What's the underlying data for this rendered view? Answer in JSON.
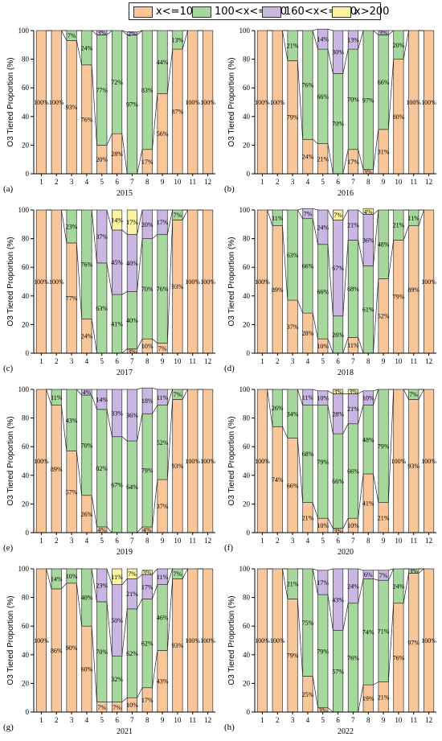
{
  "colors": {
    "x<=100": "#F9C69A",
    "100<x<=160": "#A6D79C",
    "160<x<=200": "#C9B6E3",
    "x>200": "#FCF3A2",
    "axis": "#000000"
  },
  "legend": {
    "entries": [
      "x<=100",
      "100<x<=160",
      "160<x<=200",
      "x>200"
    ]
  },
  "chart_data": [
    {
      "type": "bar",
      "stacked": true,
      "panel_label": "(a)",
      "title": "2015",
      "ylabel": "O3 Tiered Proportion (%)",
      "ylim": [
        0,
        100
      ],
      "yticks": [
        0,
        20,
        40,
        60,
        80,
        100
      ],
      "categories": [
        "1",
        "2",
        "3",
        "4",
        "5",
        "6",
        "7",
        "8",
        "9",
        "10",
        "11",
        "12"
      ],
      "series": [
        {
          "name": "x<=100",
          "values": [
            100,
            100,
            93,
            76,
            20,
            28,
            0,
            17,
            56,
            87,
            100,
            100
          ]
        },
        {
          "name": "100<x<=160",
          "values": [
            0,
            0,
            7,
            24,
            77,
            72,
            97,
            83,
            44,
            13,
            0,
            0
          ]
        },
        {
          "name": "160<x<=200",
          "values": [
            0,
            0,
            0,
            0,
            3,
            0,
            2,
            0,
            0,
            0,
            0,
            0
          ]
        },
        {
          "name": "x>200",
          "values": [
            0,
            0,
            0,
            0,
            0,
            0,
            0,
            0,
            0,
            0,
            0,
            0
          ]
        }
      ],
      "data_labels": [
        [
          "100%",
          "100%",
          "93%",
          "76%",
          "20%",
          "28%",
          "",
          "17%",
          "56%",
          "87%",
          "100%",
          "100%"
        ],
        [
          "",
          "",
          "7%",
          "24%",
          "77%",
          "72%",
          "97%",
          "83%",
          "44%",
          "13%",
          "",
          ""
        ],
        [
          "",
          "",
          "",
          "",
          "3%",
          "",
          "2%",
          "",
          "",
          "",
          "",
          ""
        ],
        [
          "",
          "",
          "",
          "",
          "",
          "",
          "",
          "",
          "",
          "",
          "",
          ""
        ]
      ]
    },
    {
      "type": "bar",
      "stacked": true,
      "panel_label": "(b)",
      "title": "2016",
      "ylabel": "O3 Tiered Proportion (%)",
      "ylim": [
        0,
        100
      ],
      "yticks": [
        0,
        20,
        40,
        60,
        80,
        100
      ],
      "categories": [
        "1",
        "2",
        "3",
        "4",
        "5",
        "6",
        "7",
        "8",
        "9",
        "10",
        "11",
        "12"
      ],
      "series": [
        {
          "name": "x<=100",
          "values": [
            100,
            100,
            79,
            24,
            21,
            0,
            17,
            3,
            31,
            80,
            100,
            100
          ]
        },
        {
          "name": "100<x<=160",
          "values": [
            0,
            0,
            21,
            76,
            66,
            70,
            70,
            97,
            66,
            20,
            0,
            0
          ]
        },
        {
          "name": "160<x<=200",
          "values": [
            0,
            0,
            0,
            0,
            14,
            30,
            13,
            0,
            3,
            0,
            0,
            0
          ]
        },
        {
          "name": "x>200",
          "values": [
            0,
            0,
            0,
            0,
            0,
            0,
            0,
            0,
            0,
            0,
            0,
            0
          ]
        }
      ],
      "data_labels": [
        [
          "100%",
          "100%",
          "79%",
          "24%",
          "21%",
          "",
          "17%",
          "3%",
          "31%",
          "80%",
          "100%",
          "100%"
        ],
        [
          "",
          "",
          "21%",
          "76%",
          "66%",
          "70%",
          "70%",
          "97%",
          "66%",
          "20%",
          "",
          ""
        ],
        [
          "",
          "",
          "",
          "",
          "14%",
          "30%",
          "13%",
          "",
          "3%",
          "",
          "",
          ""
        ],
        [
          "",
          "",
          "",
          "",
          "",
          "",
          "",
          "",
          "",
          "",
          "",
          ""
        ]
      ]
    },
    {
      "type": "bar",
      "stacked": true,
      "panel_label": "(c)",
      "title": "2017",
      "ylabel": "O3 Tiered Proportion (%)",
      "ylim": [
        0,
        100
      ],
      "yticks": [
        0,
        20,
        40,
        60,
        80,
        100
      ],
      "categories": [
        "1",
        "2",
        "3",
        "4",
        "5",
        "6",
        "7",
        "8",
        "9",
        "10",
        "11",
        "12"
      ],
      "series": [
        {
          "name": "x<=100",
          "values": [
            100,
            100,
            77,
            24,
            0,
            0,
            3,
            10,
            7,
            93,
            100,
            100
          ]
        },
        {
          "name": "100<x<=160",
          "values": [
            0,
            0,
            23,
            76,
            63,
            41,
            40,
            70,
            76,
            7,
            0,
            0
          ]
        },
        {
          "name": "160<x<=200",
          "values": [
            0,
            0,
            0,
            0,
            37,
            45,
            40,
            20,
            17,
            0,
            0,
            0
          ]
        },
        {
          "name": "x>200",
          "values": [
            0,
            0,
            0,
            0,
            0,
            14,
            17,
            0,
            0,
            0,
            0,
            0
          ]
        }
      ],
      "data_labels": [
        [
          "100%",
          "100%",
          "77%",
          "24%",
          "",
          "",
          "3%",
          "10%",
          "7%",
          "93%",
          "100%",
          "100%"
        ],
        [
          "",
          "",
          "23%",
          "76%",
          "63%",
          "41%",
          "40%",
          "70%",
          "76%",
          "7%",
          "",
          ""
        ],
        [
          "",
          "",
          "",
          "",
          "37%",
          "45%",
          "40%",
          "20%",
          "17%",
          "",
          "",
          ""
        ],
        [
          "",
          "",
          "",
          "",
          "",
          "14%",
          "17%",
          "",
          "",
          "",
          "",
          ""
        ]
      ]
    },
    {
      "type": "bar",
      "stacked": true,
      "panel_label": "(d)",
      "title": "2018",
      "ylabel": "O3 Tiered Proportion (%)",
      "ylim": [
        0,
        100
      ],
      "yticks": [
        0,
        20,
        40,
        60,
        80,
        100
      ],
      "categories": [
        "1",
        "2",
        "3",
        "4",
        "5",
        "6",
        "7",
        "8",
        "9",
        "10",
        "11",
        "12"
      ],
      "series": [
        {
          "name": "x<=100",
          "values": [
            100,
            89,
            37,
            28,
            10,
            0,
            11,
            0,
            52,
            79,
            89,
            100
          ]
        },
        {
          "name": "100<x<=160",
          "values": [
            0,
            11,
            63,
            66,
            66,
            26,
            68,
            61,
            48,
            21,
            11,
            0
          ]
        },
        {
          "name": "160<x<=200",
          "values": [
            0,
            0,
            0,
            7,
            24,
            67,
            21,
            36,
            0,
            0,
            0,
            0
          ]
        },
        {
          "name": "x>200",
          "values": [
            0,
            0,
            0,
            0,
            0,
            7,
            0,
            4,
            0,
            0,
            0,
            0
          ]
        }
      ],
      "data_labels": [
        [
          "100%",
          "89%",
          "37%",
          "28%",
          "10%",
          "",
          "11%",
          "",
          "52%",
          "79%",
          "89%",
          "100%"
        ],
        [
          "",
          "11%",
          "63%",
          "66%",
          "66%",
          "26%",
          "68%",
          "61%",
          "48%",
          "21%",
          "11%",
          ""
        ],
        [
          "",
          "",
          "",
          "7%",
          "24%",
          "67%",
          "21%",
          "36%",
          "",
          "",
          "",
          ""
        ],
        [
          "",
          "",
          "",
          "",
          "",
          "7%",
          "",
          "4%",
          "",
          "",
          "",
          ""
        ]
      ]
    },
    {
      "type": "bar",
      "stacked": true,
      "panel_label": "(e)",
      "title": "2019",
      "ylabel": "O3 Tiered Proportion (%)",
      "ylim": [
        0,
        100
      ],
      "yticks": [
        0,
        20,
        40,
        60,
        80,
        100
      ],
      "categories": [
        "1",
        "2",
        "3",
        "4",
        "5",
        "6",
        "7",
        "8",
        "9",
        "10",
        "11",
        "12"
      ],
      "series": [
        {
          "name": "x<=100",
          "values": [
            100,
            89,
            57,
            26,
            4,
            0,
            0,
            4,
            37,
            93,
            100,
            100
          ]
        },
        {
          "name": "100<x<=160",
          "values": [
            0,
            11,
            43,
            70,
            82,
            67,
            64,
            79,
            52,
            7,
            0,
            0
          ]
        },
        {
          "name": "160<x<=200",
          "values": [
            0,
            0,
            0,
            4,
            14,
            33,
            36,
            18,
            11,
            0,
            0,
            0
          ]
        },
        {
          "name": "x>200",
          "values": [
            0,
            0,
            0,
            0,
            0,
            0,
            0,
            0,
            0,
            0,
            0,
            0
          ]
        }
      ],
      "data_labels": [
        [
          "100%",
          "89%",
          "57%",
          "26%",
          "4%",
          "",
          "",
          "4%",
          "37%",
          "93%",
          "100%",
          "100%"
        ],
        [
          "",
          "11%",
          "43%",
          "70%",
          "82%",
          "67%",
          "64%",
          "79%",
          "52%",
          "7%",
          "",
          ""
        ],
        [
          "",
          "",
          "",
          "4%",
          "14%",
          "33%",
          "36%",
          "18%",
          "11%",
          "",
          "",
          ""
        ],
        [
          "",
          "",
          "",
          "",
          "",
          "",
          "",
          "",
          "",
          "",
          "",
          ""
        ]
      ]
    },
    {
      "type": "bar",
      "stacked": true,
      "panel_label": "(f)",
      "title": "2020",
      "ylabel": "O3 Tiered Proportion (%)",
      "ylim": [
        0,
        100
      ],
      "yticks": [
        0,
        20,
        40,
        60,
        80,
        100
      ],
      "categories": [
        "1",
        "2",
        "3",
        "4",
        "5",
        "6",
        "7",
        "8",
        "9",
        "10",
        "11",
        "12"
      ],
      "series": [
        {
          "name": "x<=100",
          "values": [
            100,
            74,
            66,
            21,
            10,
            3,
            10,
            41,
            21,
            100,
            93,
            100
          ]
        },
        {
          "name": "100<x<=160",
          "values": [
            0,
            26,
            34,
            68,
            79,
            66,
            66,
            48,
            79,
            0,
            7,
            0
          ]
        },
        {
          "name": "160<x<=200",
          "values": [
            0,
            0,
            0,
            11,
            10,
            28,
            21,
            10,
            0,
            0,
            0,
            0
          ]
        },
        {
          "name": "x>200",
          "values": [
            0,
            0,
            0,
            0,
            0,
            3,
            3,
            0,
            0,
            0,
            0,
            0
          ]
        }
      ],
      "data_labels": [
        [
          "100%",
          "74%",
          "66%",
          "21%",
          "10%",
          "3%",
          "10%",
          "41%",
          "21%",
          "100%",
          "93%",
          "100%"
        ],
        [
          "",
          "26%",
          "34%",
          "68%",
          "79%",
          "66%",
          "66%",
          "48%",
          "79%",
          "",
          "7%",
          ""
        ],
        [
          "",
          "",
          "",
          "11%",
          "10%",
          "28%",
          "21%",
          "10%",
          "",
          "",
          "",
          ""
        ],
        [
          "",
          "",
          "",
          "",
          "",
          "3%",
          "3%",
          "",
          "",
          "",
          "",
          ""
        ]
      ]
    },
    {
      "type": "bar",
      "stacked": true,
      "panel_label": "(g)",
      "title": "2021",
      "ylabel": "O3 Tiered Proportion (%)",
      "ylim": [
        0,
        100
      ],
      "yticks": [
        0,
        20,
        40,
        60,
        80,
        100
      ],
      "categories": [
        "1",
        "2",
        "3",
        "4",
        "5",
        "6",
        "7",
        "8",
        "9",
        "10",
        "11",
        "12"
      ],
      "series": [
        {
          "name": "x<=100",
          "values": [
            100,
            86,
            90,
            60,
            7,
            7,
            10,
            17,
            43,
            93,
            100,
            100
          ]
        },
        {
          "name": "100<x<=160",
          "values": [
            0,
            14,
            10,
            40,
            70,
            32,
            62,
            62,
            46,
            7,
            0,
            0
          ]
        },
        {
          "name": "160<x<=200",
          "values": [
            0,
            0,
            0,
            0,
            23,
            50,
            21,
            17,
            11,
            0,
            0,
            0
          ]
        },
        {
          "name": "x>200",
          "values": [
            0,
            0,
            0,
            0,
            0,
            11,
            7,
            3,
            0,
            0,
            0,
            0
          ]
        }
      ],
      "data_labels": [
        [
          "100%",
          "86%",
          "90%",
          "60%",
          "7%",
          "7%",
          "10%",
          "17%",
          "43%",
          "93%",
          "100%",
          "100%"
        ],
        [
          "",
          "14%",
          "10%",
          "40%",
          "70%",
          "32%",
          "62%",
          "62%",
          "46%",
          "7%",
          "",
          ""
        ],
        [
          "",
          "",
          "",
          "",
          "23%",
          "50%",
          "21%",
          "17%",
          "11%",
          "",
          "",
          ""
        ],
        [
          "",
          "",
          "",
          "",
          "",
          "11%",
          "7%",
          "3%",
          "",
          "",
          "",
          ""
        ]
      ]
    },
    {
      "type": "bar",
      "stacked": true,
      "panel_label": "(h)",
      "title": "2022",
      "ylabel": "O3 Tiered Proportion (%)",
      "ylim": [
        0,
        100
      ],
      "yticks": [
        0,
        20,
        40,
        60,
        80,
        100
      ],
      "categories": [
        "1",
        "2",
        "3",
        "4",
        "5",
        "6",
        "7",
        "8",
        "9",
        "10",
        "11",
        "12"
      ],
      "series": [
        {
          "name": "x<=100",
          "values": [
            100,
            100,
            79,
            25,
            3,
            0,
            0,
            19,
            21,
            76,
            97,
            100
          ]
        },
        {
          "name": "100<x<=160",
          "values": [
            0,
            0,
            21,
            75,
            79,
            57,
            76,
            74,
            71,
            24,
            3,
            0
          ]
        },
        {
          "name": "160<x<=200",
          "values": [
            0,
            0,
            0,
            0,
            17,
            43,
            24,
            6,
            7,
            0,
            0,
            0
          ]
        },
        {
          "name": "x>200",
          "values": [
            0,
            0,
            0,
            0,
            0,
            0,
            0,
            0,
            0,
            0,
            0,
            0
          ]
        }
      ],
      "data_labels": [
        [
          "100%",
          "100%",
          "79%",
          "25%",
          "3%",
          "",
          "",
          "19%",
          "21%",
          "76%",
          "97%",
          "100%"
        ],
        [
          "",
          "",
          "21%",
          "75%",
          "79%",
          "57%",
          "76%",
          "74%",
          "71%",
          "24%",
          "3%",
          ""
        ],
        [
          "",
          "",
          "",
          "",
          "17%",
          "43%",
          "24%",
          "6%",
          "7%",
          "",
          "",
          ""
        ],
        [
          "",
          "",
          "",
          "",
          "",
          "",
          "",
          "",
          "",
          "",
          "",
          ""
        ]
      ]
    }
  ]
}
